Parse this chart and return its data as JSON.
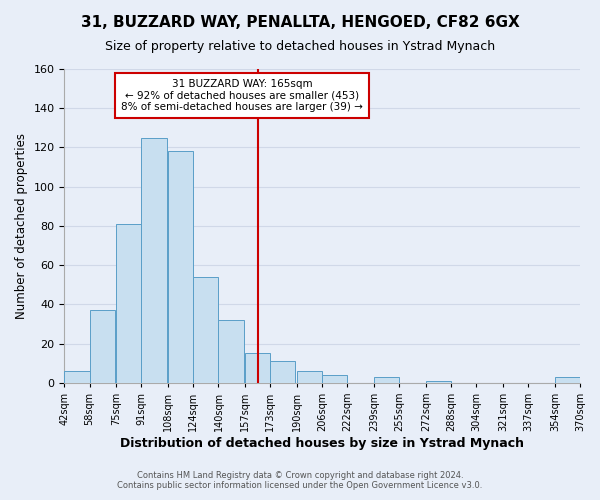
{
  "title": "31, BUZZARD WAY, PENALLTA, HENGOED, CF82 6GX",
  "subtitle": "Size of property relative to detached houses in Ystrad Mynach",
  "xlabel": "Distribution of detached houses by size in Ystrad Mynach",
  "ylabel": "Number of detached properties",
  "bin_labels": [
    "42sqm",
    "58sqm",
    "75sqm",
    "91sqm",
    "108sqm",
    "124sqm",
    "140sqm",
    "157sqm",
    "173sqm",
    "190sqm",
    "206sqm",
    "222sqm",
    "239sqm",
    "255sqm",
    "272sqm",
    "288sqm",
    "304sqm",
    "321sqm",
    "337sqm",
    "354sqm",
    "370sqm"
  ],
  "bin_edges": [
    42,
    58,
    75,
    91,
    108,
    124,
    140,
    157,
    173,
    190,
    206,
    222,
    239,
    255,
    272,
    288,
    304,
    321,
    337,
    354,
    370
  ],
  "bar_counts": [
    6,
    37,
    81,
    125,
    118,
    54,
    32,
    15,
    11,
    6,
    4,
    0,
    3,
    0,
    1,
    0,
    0,
    0,
    0,
    3
  ],
  "bar_color": "#c8dff0",
  "bar_edge_color": "#5a9ec8",
  "property_line_x": 165,
  "property_line_color": "#cc0000",
  "annotation_title": "31 BUZZARD WAY: 165sqm",
  "annotation_line1": "← 92% of detached houses are smaller (453)",
  "annotation_line2": "8% of semi-detached houses are larger (39) →",
  "annotation_box_color": "white",
  "annotation_box_edge_color": "#cc0000",
  "ylim": [
    0,
    160
  ],
  "yticks": [
    0,
    20,
    40,
    60,
    80,
    100,
    120,
    140,
    160
  ],
  "footer1": "Contains HM Land Registry data © Crown copyright and database right 2024.",
  "footer2": "Contains public sector information licensed under the Open Government Licence v3.0.",
  "background_color": "#e8eef8",
  "grid_color": "#d0d8e8"
}
